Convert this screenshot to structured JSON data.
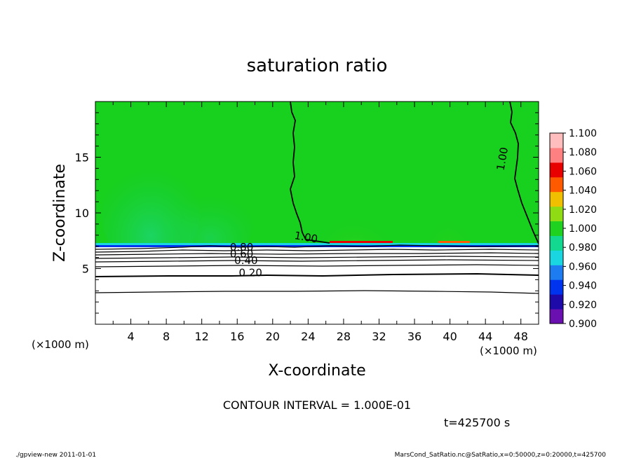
{
  "chart_data": {
    "type": "heatmap",
    "title": "saturation ratio",
    "xlabel": "X-coordinate",
    "ylabel": "Z-coordinate",
    "x_unit_left": "(×1000 m)",
    "x_unit_right": "(×1000 m)",
    "xlim": [
      0,
      50
    ],
    "ylim": [
      0,
      20
    ],
    "x_ticks": [
      4,
      8,
      12,
      16,
      20,
      24,
      28,
      32,
      36,
      40,
      44,
      48
    ],
    "y_ticks": [
      5,
      10,
      15
    ],
    "colorbar": {
      "levels": [
        0.9,
        0.92,
        0.94,
        0.96,
        0.98,
        1.0,
        1.02,
        1.04,
        1.06,
        1.08,
        1.1
      ],
      "labels": [
        "0.900",
        "0.920",
        "0.940",
        "0.960",
        "0.980",
        "1.000",
        "1.020",
        "1.040",
        "1.060",
        "1.080",
        "1.100"
      ],
      "colors": [
        "#6a0fb0",
        "#1d0aa8",
        "#0033ee",
        "#1c7cf0",
        "#1ad6e0",
        "#12d890",
        "#1fd21f",
        "#8fdc14",
        "#f0c000",
        "#ff5a00",
        "#e80000",
        "#ff8080",
        "#ffbdbd"
      ]
    },
    "contour_labels": [
      {
        "text": "1.00",
        "x": 23.7,
        "z": 7.5
      },
      {
        "text": "1.00",
        "x": 46.3,
        "z": 14.8
      },
      {
        "text": "0.80",
        "x": 16.5,
        "z": 6.6
      },
      {
        "text": "0.60",
        "x": 16.5,
        "z": 6.0
      },
      {
        "text": "0.40",
        "x": 17.0,
        "z": 5.4
      },
      {
        "text": "0.20",
        "x": 17.5,
        "z": 4.3
      }
    ],
    "contour_interval": "CONTOUR INTERVAL = 1.000E-01",
    "time_label": "t=425700 s"
  },
  "footer": {
    "left": "./gpview-new 2011-01-01",
    "right": "MarsCond_SatRatio.nc@SatRatio,x=0:50000,z=0:20000,t=425700"
  }
}
